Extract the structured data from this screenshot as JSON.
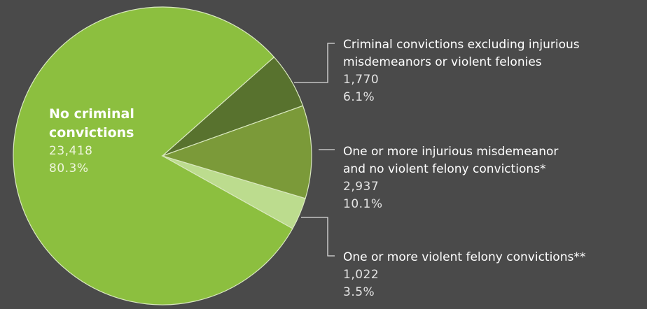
{
  "chart_data": {
    "type": "pie",
    "slices": [
      {
        "label_lines": [
          "No criminal",
          "convictions"
        ],
        "count": "23,418",
        "value": 23418,
        "percent": "80.3%",
        "color": "#8cbf3f"
      },
      {
        "label_lines": [
          "Criminal convictions excluding injurious",
          "misdemeanors or violent felonies"
        ],
        "count": "1,770",
        "value": 1770,
        "percent": "6.1%",
        "color": "#58722e"
      },
      {
        "label_lines": [
          "One or more injurious misdemeanor",
          "and no violent felony convictions*"
        ],
        "count": "2,937",
        "value": 2937,
        "percent": "10.1%",
        "color": "#7b9a39"
      },
      {
        "label_lines": [
          "One or more violent felony convictions**"
        ],
        "count": "1,022",
        "value": 1022,
        "percent": "3.5%",
        "color": "#bcdc8e"
      }
    ],
    "background": "#4a4a4a",
    "leader_color": "#dcdcdc"
  }
}
